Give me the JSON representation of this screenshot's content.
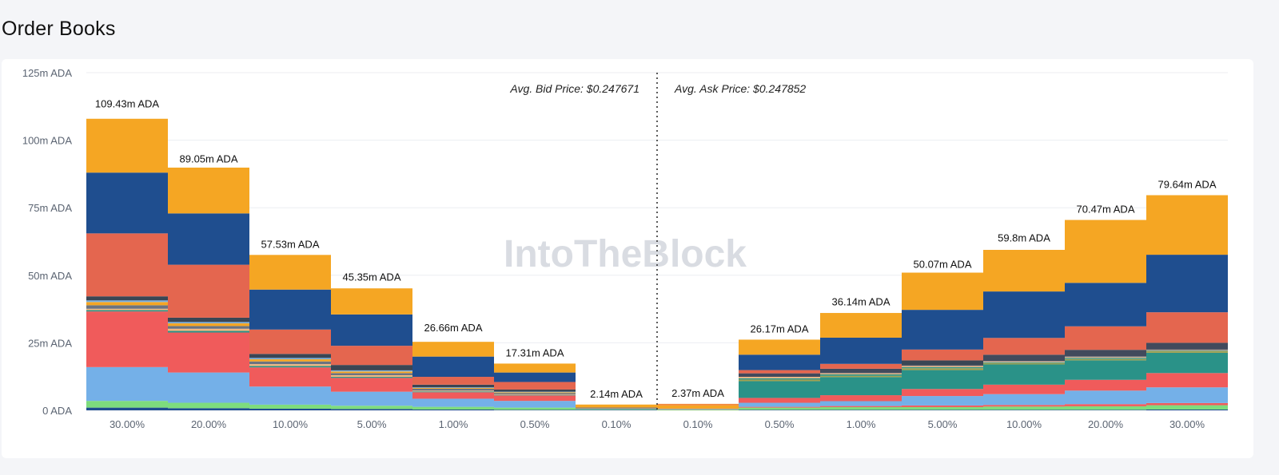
{
  "header": {
    "title": "Order Books"
  },
  "watermark": {
    "text": "IntoTheBlock"
  },
  "chart_data": {
    "type": "bar",
    "title": "Order Books",
    "unit": "ADA",
    "ylim": [
      0,
      125
    ],
    "yticks": [
      {
        "value": 0,
        "label": "0 ADA"
      },
      {
        "value": 25,
        "label": "25m ADA"
      },
      {
        "value": 50,
        "label": "50m ADA"
      },
      {
        "value": 75,
        "label": "75m ADA"
      },
      {
        "value": 100,
        "label": "100m ADA"
      },
      {
        "value": 125,
        "label": "125m ADA"
      }
    ],
    "avg_bid_label": "Avg. Bid Price: $0.247671",
    "avg_ask_label": "Avg. Ask Price: $0.247852",
    "categories": [
      "30.00%",
      "20.00%",
      "10.00%",
      "5.00%",
      "1.00%",
      "0.50%",
      "0.10%",
      "0.10%",
      "0.50%",
      "1.00%",
      "5.00%",
      "10.00%",
      "20.00%",
      "30.00%"
    ],
    "sides": [
      "bid",
      "bid",
      "bid",
      "bid",
      "bid",
      "bid",
      "bid",
      "ask",
      "ask",
      "ask",
      "ask",
      "ask",
      "ask",
      "ask"
    ],
    "totals": [
      109.43,
      89.05,
      57.53,
      45.35,
      26.66,
      17.31,
      2.14,
      2.37,
      26.17,
      36.14,
      50.07,
      59.8,
      70.47,
      79.64
    ],
    "total_labels": [
      "109.43m ADA",
      "89.05m ADA",
      "57.53m ADA",
      "45.35m ADA",
      "26.66m ADA",
      "17.31m ADA",
      "2.14m ADA",
      "2.37m ADA",
      "26.17m ADA",
      "36.14m ADA",
      "50.07m ADA",
      "59.8m ADA",
      "70.47m ADA",
      "79.64m ADA"
    ],
    "series": [
      {
        "name": "navy",
        "color": "#1f4e8f",
        "values": [
          1,
          0.8,
          0.6,
          0.5,
          0.3,
          0.2,
          0.2,
          0,
          0.2,
          0.2,
          0.2,
          0.2,
          0.2,
          0.3
        ]
      },
      {
        "name": "green",
        "color": "#7ddc7d",
        "values": [
          2.5,
          2,
          1.5,
          1.2,
          1,
          0.8,
          0.3,
          0.3,
          0.8,
          1,
          1,
          1.2,
          1.3,
          1.6
        ]
      },
      {
        "name": "red",
        "color": "#f05b5b",
        "values": [
          0,
          0,
          0,
          0,
          0,
          0,
          0,
          0.1,
          0.3,
          0.4,
          0.6,
          0.6,
          0.8,
          0.8
        ]
      },
      {
        "name": "lightblue",
        "color": "#74b0e8",
        "values": [
          12.5,
          11.2,
          6.7,
          5.2,
          3,
          2.5,
          0.1,
          0.2,
          1.5,
          1.8,
          3.5,
          4,
          5,
          5.8
        ]
      },
      {
        "name": "red2",
        "color": "#f05b5b",
        "values": [
          0,
          0,
          0,
          0,
          0,
          0,
          0,
          0,
          1.8,
          2.2,
          2.6,
          3.5,
          4,
          5.3
        ]
      },
      {
        "name": "teal",
        "color": "#2a9288",
        "values": [
          0,
          0,
          0,
          0,
          0,
          0,
          0,
          0,
          6.2,
          6.7,
          7,
          7.5,
          7.2,
          7.5
        ]
      },
      {
        "name": "olive",
        "color": "#a0a050",
        "values": [
          0,
          0,
          0,
          0,
          0,
          0,
          0,
          0,
          0.6,
          0.5,
          0.7,
          0.5,
          0.5,
          0.6
        ]
      },
      {
        "name": "red3",
        "color": "#f05b5b",
        "values": [
          20.6,
          14.8,
          7.1,
          5.1,
          2.4,
          2.0,
          0,
          0,
          0,
          0,
          0,
          0,
          0,
          0
        ]
      },
      {
        "name": "teal2",
        "color": "#2a9288",
        "values": [
          0.5,
          0.6,
          0.5,
          0.4,
          0.3,
          0.2,
          0,
          0,
          0.5,
          0.5,
          0.4,
          0.3,
          0.4,
          0.2
        ]
      },
      {
        "name": "peach",
        "color": "#f3b880",
        "values": [
          0.5,
          0.8,
          0.7,
          0.6,
          0.3,
          0.2,
          0,
          0,
          0.5,
          0.4,
          0.4,
          0.3,
          0.3,
          0.2
        ]
      },
      {
        "name": "gray",
        "color": "#6c7380",
        "values": [
          1.3,
          1,
          1,
          0.8,
          0.7,
          0.5,
          0.1,
          0,
          0,
          0.2,
          0.3,
          0.2,
          0.3,
          0.3
        ]
      },
      {
        "name": "yellow",
        "color": "#f5a623",
        "values": [
          1.2,
          1,
          0.8,
          0.6,
          0.3,
          0.3,
          0,
          1.2,
          0,
          0,
          0,
          0,
          0,
          0
        ]
      },
      {
        "name": "blue2",
        "color": "#7ab0e0",
        "values": [
          0.6,
          0.5,
          0.5,
          0.4,
          0.2,
          0.2,
          0,
          0,
          0,
          0,
          0,
          0,
          0,
          0
        ]
      },
      {
        "name": "dark",
        "color": "#3a4654",
        "values": [
          1.5,
          1.6,
          1.5,
          2,
          1,
          0.8,
          0,
          0,
          0,
          0,
          1.8,
          0,
          0,
          0
        ]
      },
      {
        "name": "darkgray",
        "color": "#424a5c",
        "values": [
          0,
          0,
          0,
          0,
          0,
          0,
          0,
          0,
          1.3,
          1.5,
          0,
          2.3,
          2.4,
          2.4
        ]
      },
      {
        "name": "orange",
        "color": "#f38a3a",
        "values": [
          0,
          0,
          0,
          0,
          0,
          0,
          0.1,
          0.6,
          0,
          0,
          0,
          0,
          0,
          0
        ]
      },
      {
        "name": "salmon",
        "color": "#e4664f",
        "values": [
          23.3,
          19.6,
          9,
          7.1,
          2.9,
          2.8,
          0,
          0,
          1.2,
          1.8,
          4,
          6.2,
          8.7,
          11.3
        ]
      },
      {
        "name": "blue",
        "color": "#1f4e8f",
        "values": [
          22.5,
          19,
          14.8,
          11.6,
          7.5,
          3.5,
          0.2,
          0,
          5.7,
          9.7,
          14.7,
          17.2,
          16.1,
          21.3
        ]
      },
      {
        "name": "gold",
        "color": "#f5a623",
        "values": [
          19.93,
          16.95,
          12.83,
          9.65,
          5.46,
          3.31,
          1.14,
          0,
          5.57,
          9.14,
          13.77,
          15.4,
          23.27,
          22.04
        ]
      }
    ]
  }
}
